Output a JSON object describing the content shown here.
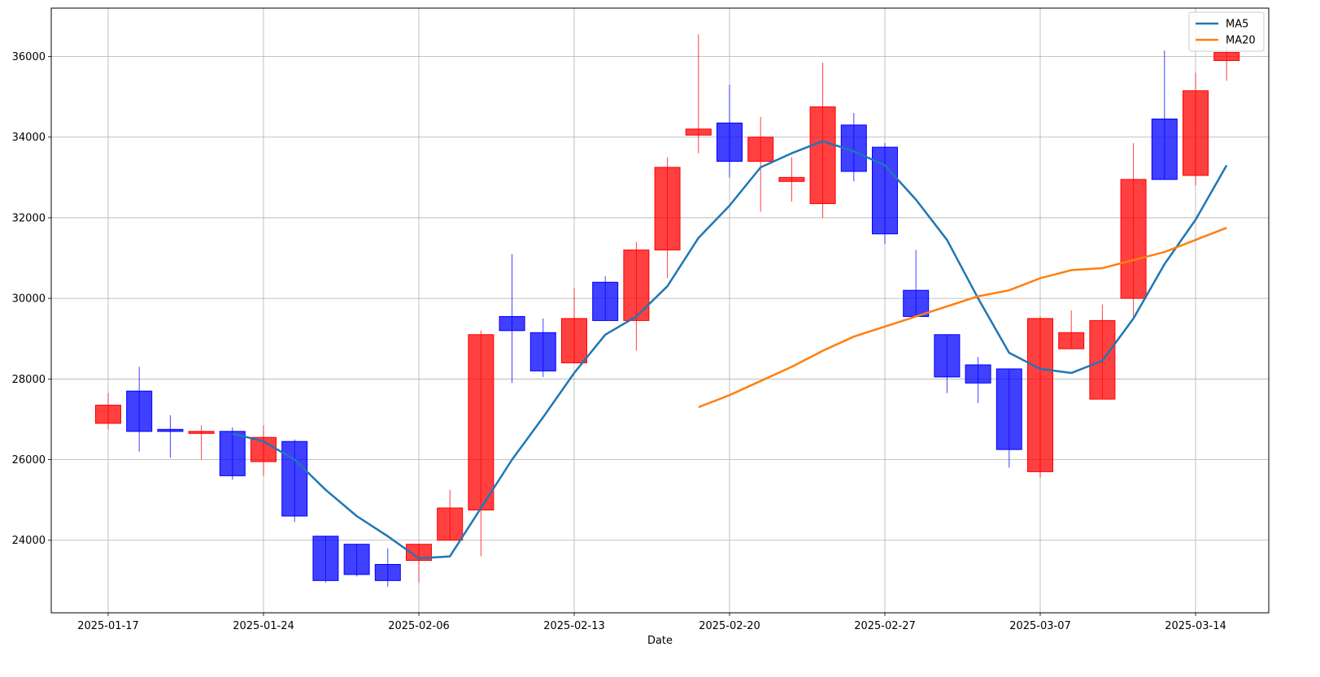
{
  "chart_data": {
    "type": "candlestick",
    "xlabel": "Date",
    "ylabel": "",
    "ylim": [
      22200,
      37200
    ],
    "grid": true,
    "legend_position": "top-right",
    "x_ticks": [
      "2025-01-17",
      "2025-01-24",
      "2025-02-06",
      "2025-02-13",
      "2025-02-20",
      "2025-02-27",
      "2025-03-07",
      "2025-03-14"
    ],
    "y_ticks": [
      24000,
      26000,
      28000,
      30000,
      32000,
      34000,
      36000
    ],
    "up_color": "#ff0000",
    "down_color": "#0000ff",
    "candles": [
      {
        "open": 26900,
        "high": 27650,
        "low": 26750,
        "close": 27350
      },
      {
        "open": 27700,
        "high": 28300,
        "low": 26200,
        "close": 26700
      },
      {
        "open": 26750,
        "high": 27100,
        "low": 26050,
        "close": 26700
      },
      {
        "open": 26700,
        "high": 26850,
        "low": 26000,
        "close": 26700
      },
      {
        "open": 26700,
        "high": 26800,
        "low": 25500,
        "close": 25600
      },
      {
        "open": 25950,
        "high": 26850,
        "low": 25600,
        "close": 26550
      },
      {
        "open": 26450,
        "high": 26500,
        "low": 24450,
        "close": 24600
      },
      {
        "open": 24100,
        "high": 24100,
        "low": 22950,
        "close": 23000
      },
      {
        "open": 23900,
        "high": 23900,
        "low": 23100,
        "close": 23150
      },
      {
        "open": 23400,
        "high": 23800,
        "low": 22850,
        "close": 23000
      },
      {
        "open": 23500,
        "high": 23900,
        "low": 22950,
        "close": 23900
      },
      {
        "open": 24000,
        "high": 25250,
        "low": 24000,
        "close": 24800
      },
      {
        "open": 24750,
        "high": 29200,
        "low": 23600,
        "close": 29100
      },
      {
        "open": 29550,
        "high": 31100,
        "low": 27900,
        "close": 29200
      },
      {
        "open": 29150,
        "high": 29500,
        "low": 28050,
        "close": 28200
      },
      {
        "open": 28400,
        "high": 30250,
        "low": 28400,
        "close": 29500
      },
      {
        "open": 30400,
        "high": 30550,
        "low": 29450,
        "close": 29450
      },
      {
        "open": 29450,
        "high": 31400,
        "low": 28700,
        "close": 31200
      },
      {
        "open": 31200,
        "high": 33500,
        "low": 30500,
        "close": 33250
      },
      {
        "open": 34050,
        "high": 36550,
        "low": 33600,
        "close": 34200
      },
      {
        "open": 34350,
        "high": 35300,
        "low": 33000,
        "close": 33400
      },
      {
        "open": 33400,
        "high": 34500,
        "low": 32150,
        "close": 34000
      },
      {
        "open": 32900,
        "high": 33500,
        "low": 32400,
        "close": 33000
      },
      {
        "open": 32350,
        "high": 35850,
        "low": 32000,
        "close": 34750
      },
      {
        "open": 34300,
        "high": 34600,
        "low": 32900,
        "close": 33150
      },
      {
        "open": 33750,
        "high": 33850,
        "low": 31350,
        "close": 31600
      },
      {
        "open": 30200,
        "high": 31200,
        "low": 29550,
        "close": 29550
      },
      {
        "open": 29100,
        "high": 29100,
        "low": 27650,
        "close": 28050
      },
      {
        "open": 28350,
        "high": 28550,
        "low": 27400,
        "close": 27900
      },
      {
        "open": 28250,
        "high": 28250,
        "low": 25800,
        "close": 26250
      },
      {
        "open": 25700,
        "high": 29550,
        "low": 25550,
        "close": 29500
      },
      {
        "open": 28750,
        "high": 29700,
        "low": 28750,
        "close": 29150
      },
      {
        "open": 27500,
        "high": 29850,
        "low": 27500,
        "close": 29450
      },
      {
        "open": 30000,
        "high": 33850,
        "low": 29550,
        "close": 32950
      },
      {
        "open": 34450,
        "high": 36150,
        "low": 32950,
        "close": 32950
      },
      {
        "open": 33050,
        "high": 35600,
        "low": 32800,
        "close": 35150
      },
      {
        "open": 35900,
        "high": 36300,
        "low": 35400,
        "close": 36100
      }
    ],
    "series": [
      {
        "name": "MA5",
        "color": "#1f77b4",
        "start_index": 4,
        "values": [
          26650,
          26450,
          26000,
          25250,
          24600,
          24100,
          23550,
          23600,
          24800,
          26000,
          27050,
          28150,
          29100,
          29550,
          30300,
          31500,
          32300,
          33250,
          33600,
          33900,
          33650,
          33300,
          32450,
          31450,
          30000,
          28650,
          28250,
          28150,
          28450,
          29500,
          30850,
          31950,
          33300
        ]
      },
      {
        "name": "MA20",
        "color": "#ff7f0e",
        "start_index": 19,
        "values": [
          27300,
          27600,
          27950,
          28300,
          28700,
          29050,
          29300,
          29550,
          29800,
          30050,
          30200,
          30500,
          30700,
          30750,
          30950,
          31150,
          31450,
          31750
        ]
      }
    ]
  }
}
